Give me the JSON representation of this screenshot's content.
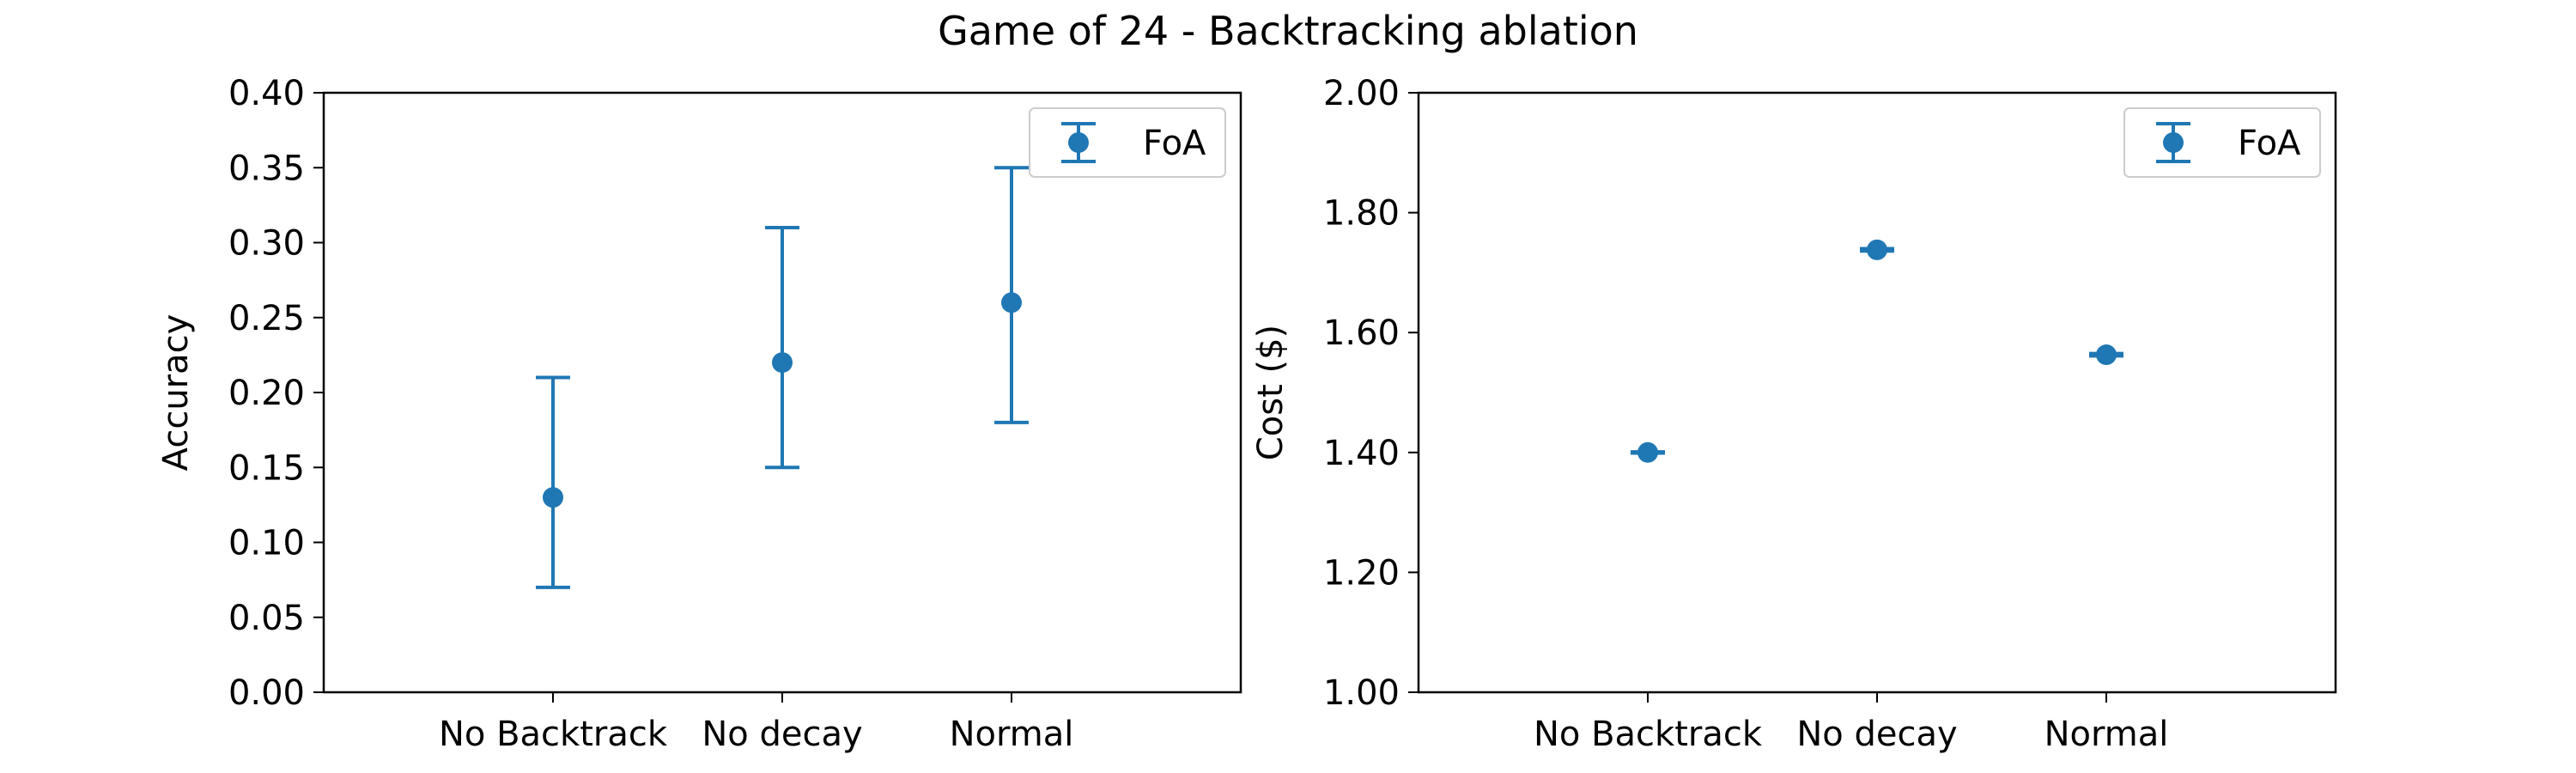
{
  "figure": {
    "title": "Game of 24 - Backtracking ablation"
  },
  "colors": {
    "series": "#1f77b4",
    "axes": "#000000",
    "legend_border": "#cccccc"
  },
  "chart_data": [
    {
      "type": "scatter",
      "error_bars": true,
      "xlabel": "",
      "ylabel": "Accuracy",
      "categories": [
        "No Backtrack",
        "No decay",
        "Normal"
      ],
      "ylim": [
        0,
        0.4
      ],
      "yticks": [
        "0.00",
        "0.05",
        "0.10",
        "0.15",
        "0.20",
        "0.25",
        "0.30",
        "0.35",
        "0.40"
      ],
      "grid": false,
      "legend": "upper right",
      "series": [
        {
          "name": "FoA",
          "values": [
            0.13,
            0.22,
            0.26
          ],
          "err_low": [
            0.07,
            0.15,
            0.18
          ],
          "err_high": [
            0.21,
            0.31,
            0.35
          ]
        }
      ]
    },
    {
      "type": "scatter",
      "error_bars": true,
      "xlabel": "",
      "ylabel": "Cost ($)",
      "categories": [
        "No Backtrack",
        "No decay",
        "Normal"
      ],
      "ylim": [
        1.0,
        2.0
      ],
      "yticks": [
        "1.00",
        "1.20",
        "1.40",
        "1.60",
        "1.80",
        "2.00"
      ],
      "grid": false,
      "legend": "upper right",
      "series": [
        {
          "name": "FoA",
          "values": [
            1.4,
            1.738,
            1.563
          ],
          "err_low": [
            1.399,
            1.736,
            1.561
          ],
          "err_high": [
            1.401,
            1.74,
            1.565
          ]
        }
      ]
    }
  ]
}
